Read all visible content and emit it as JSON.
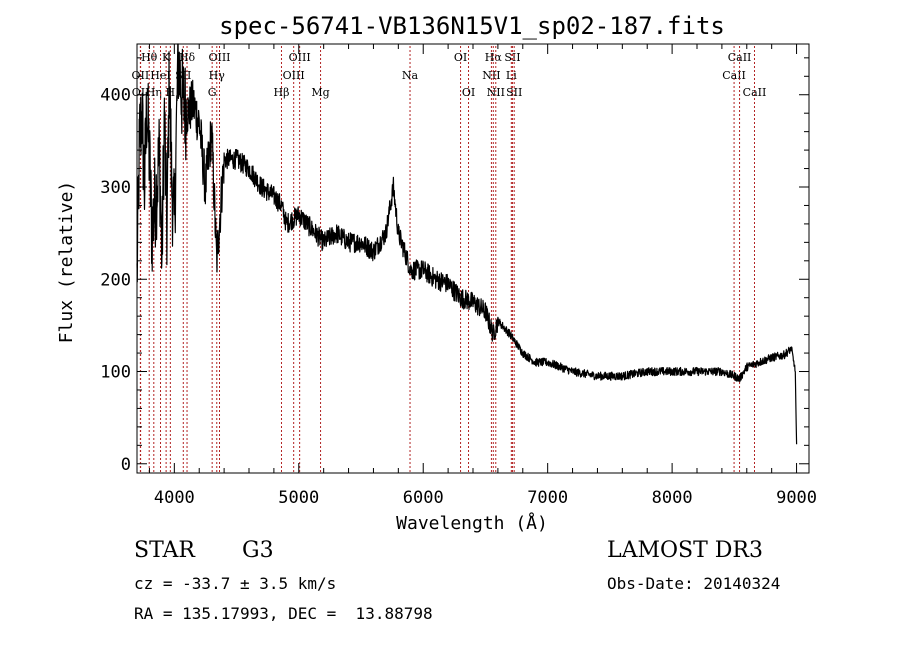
{
  "chart_data": {
    "type": "line",
    "title": "spec-56741-VB136N15V1_sp02-187.fits",
    "xlabel": "Wavelength (Å)",
    "ylabel": "Flux (relative)",
    "xlim": [
      3700,
      9100
    ],
    "ylim": [
      -10,
      455
    ],
    "xticks": [
      4000,
      5000,
      6000,
      7000,
      8000,
      9000
    ],
    "yticks": [
      0,
      100,
      200,
      300,
      400
    ],
    "line_color": "#000000",
    "marker_color": "#b22222",
    "series": [
      {
        "name": "spectrum",
        "x": [
          3700,
          3720,
          3740,
          3760,
          3780,
          3800,
          3820,
          3840,
          3860,
          3880,
          3900,
          3920,
          3940,
          3960,
          3980,
          4000,
          4030,
          4060,
          4100,
          4150,
          4200,
          4250,
          4300,
          4340,
          4400,
          4500,
          4600,
          4700,
          4800,
          4861,
          4900,
          5000,
          5100,
          5200,
          5300,
          5400,
          5500,
          5600,
          5700,
          5760,
          5800,
          5900,
          6000,
          6100,
          6200,
          6300,
          6400,
          6500,
          6563,
          6600,
          6700,
          6800,
          6900,
          7000,
          7200,
          7400,
          7600,
          7800,
          8000,
          8200,
          8400,
          8500,
          8542,
          8600,
          8700,
          8800,
          8900,
          8960,
          8990,
          9000
        ],
        "y": [
          200,
          350,
          380,
          300,
          390,
          330,
          250,
          280,
          300,
          340,
          220,
          380,
          250,
          420,
          300,
          260,
          440,
          400,
          380,
          390,
          370,
          300,
          360,
          220,
          330,
          330,
          320,
          300,
          290,
          280,
          260,
          270,
          255,
          240,
          250,
          240,
          240,
          230,
          250,
          300,
          250,
          210,
          210,
          200,
          195,
          180,
          175,
          165,
          140,
          155,
          140,
          120,
          110,
          110,
          100,
          95,
          95,
          100,
          100,
          100,
          100,
          95,
          92,
          105,
          110,
          115,
          118,
          125,
          100,
          20
        ]
      }
    ],
    "lines": [
      {
        "label": "Hθ",
        "wave": 3798,
        "row": 0
      },
      {
        "label": "OII",
        "wave": 3727,
        "row": 1
      },
      {
        "label": "OII",
        "wave": 3729,
        "row": 2
      },
      {
        "label": "Hη",
        "wave": 3835,
        "row": 2
      },
      {
        "label": "HeI",
        "wave": 3889,
        "row": 1
      },
      {
        "label": "K",
        "wave": 3934,
        "row": 0
      },
      {
        "label": "H",
        "wave": 3968,
        "row": 2
      },
      {
        "label": "SII",
        "wave": 4072,
        "row": 1
      },
      {
        "label": "Hδ",
        "wave": 4102,
        "row": 0
      },
      {
        "label": "G",
        "wave": 4304,
        "row": 2
      },
      {
        "label": "Hγ",
        "wave": 4341,
        "row": 1
      },
      {
        "label": "OIII",
        "wave": 4363,
        "row": 0
      },
      {
        "label": "Hβ",
        "wave": 4861,
        "row": 2
      },
      {
        "label": "OIII",
        "wave": 4959,
        "row": 1
      },
      {
        "label": "OIII",
        "wave": 5007,
        "row": 0
      },
      {
        "label": "Mg",
        "wave": 5175,
        "row": 2
      },
      {
        "label": "Na",
        "wave": 5894,
        "row": 1
      },
      {
        "label": "OI",
        "wave": 6300,
        "row": 0
      },
      {
        "label": "OI",
        "wave": 6364,
        "row": 2
      },
      {
        "label": "NII",
        "wave": 6548,
        "row": 1
      },
      {
        "label": "Hα",
        "wave": 6563,
        "row": 0
      },
      {
        "label": "NII",
        "wave": 6583,
        "row": 2
      },
      {
        "label": "Li",
        "wave": 6708,
        "row": 1
      },
      {
        "label": "SII",
        "wave": 6717,
        "row": 0
      },
      {
        "label": "SII",
        "wave": 6731,
        "row": 2
      },
      {
        "label": "CaII",
        "wave": 8498,
        "row": 1
      },
      {
        "label": "CaII",
        "wave": 8542,
        "row": 0
      },
      {
        "label": "CaII",
        "wave": 8662,
        "row": 2
      }
    ]
  },
  "info": {
    "class_label": "STAR",
    "subclass_label": "G3",
    "survey_label": "LAMOST DR3",
    "cz_text": "cz = -33.7 ± 3.5 km/s",
    "obs_date_text": "Obs-Date: 20140324",
    "radec_text": "RA = 135.17993, DEC =  13.88798"
  }
}
